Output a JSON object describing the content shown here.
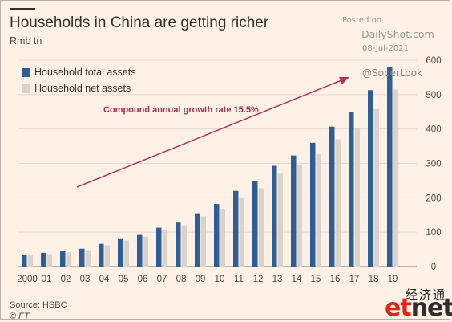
{
  "header": {
    "title": "Households in China are getting richer",
    "subtitle": "Rmb tn"
  },
  "watermark": {
    "posted": "Posted on",
    "site": "DailyShot.com",
    "date": "08-Jul-2021",
    "handle": "@SoberLook"
  },
  "footer": {
    "source": "Source: HSBC",
    "credit": "© FT"
  },
  "branding": {
    "chinese": "经济通",
    "logo_e": "e",
    "logo_t": "t",
    "logo_net": "net"
  },
  "colors": {
    "total": "#2f5e95",
    "net": "#d9d3cc",
    "arrow": "#b1345b",
    "background": "#fff1e5",
    "grid": "#e3d9cf"
  },
  "chart_data": {
    "type": "bar",
    "title": "Households in China are getting richer",
    "ylabel": "Rmb tn",
    "categories": [
      "2000",
      "01",
      "02",
      "03",
      "04",
      "05",
      "06",
      "07",
      "08",
      "09",
      "10",
      "11",
      "12",
      "13",
      "14",
      "15",
      "16",
      "17",
      "18",
      "19"
    ],
    "series": [
      {
        "name": "Household total assets",
        "color": "#2f5e95",
        "values": [
          35,
          40,
          45,
          52,
          66,
          80,
          92,
          113,
          128,
          155,
          182,
          220,
          248,
          293,
          323,
          360,
          407,
          450,
          513,
          580
        ]
      },
      {
        "name": "Household net assets",
        "color": "#d9d3cc",
        "values": [
          33,
          36,
          41,
          48,
          62,
          76,
          87,
          106,
          120,
          146,
          168,
          200,
          228,
          270,
          295,
          327,
          370,
          402,
          458,
          515
        ]
      }
    ],
    "ylim": [
      0,
      600
    ],
    "yticks": [
      0,
      100,
      200,
      300,
      400,
      500,
      600
    ],
    "y_axis_side": "right",
    "grid": true,
    "legend": "top-left",
    "annotation": "Compound annual growth rate 15.5%"
  }
}
